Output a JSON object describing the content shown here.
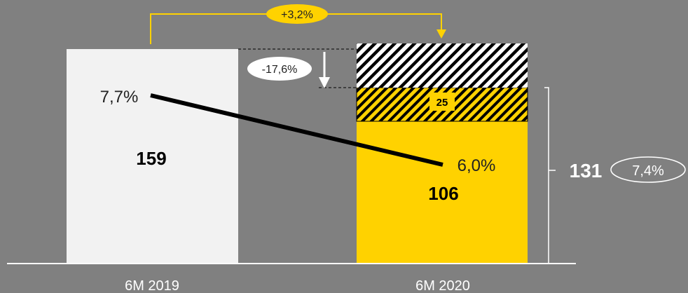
{
  "chart_data": {
    "type": "bar",
    "categories": [
      "6M 2019",
      "6M 2020"
    ],
    "series": [
      {
        "values": [
          159,
          106
        ]
      },
      {
        "values": [
          null,
          25
        ]
      },
      {
        "values": [
          null,
          28
        ]
      }
    ],
    "line": {
      "values": [
        "7,7%",
        "6,0%"
      ]
    },
    "bar_labels": [
      "159",
      "106",
      "25"
    ],
    "change_labels": {
      "growth": "+3,2%",
      "decline": "-17,6%"
    },
    "total": {
      "value": "131",
      "margin": "7,4%"
    },
    "colors": {
      "background": "#808080",
      "bar_2019": "#f2f2f2",
      "bar_2020": "#ffd200",
      "line": "#000000",
      "bracket": "#ffffff",
      "arrow_growth": "#ffd200"
    }
  }
}
